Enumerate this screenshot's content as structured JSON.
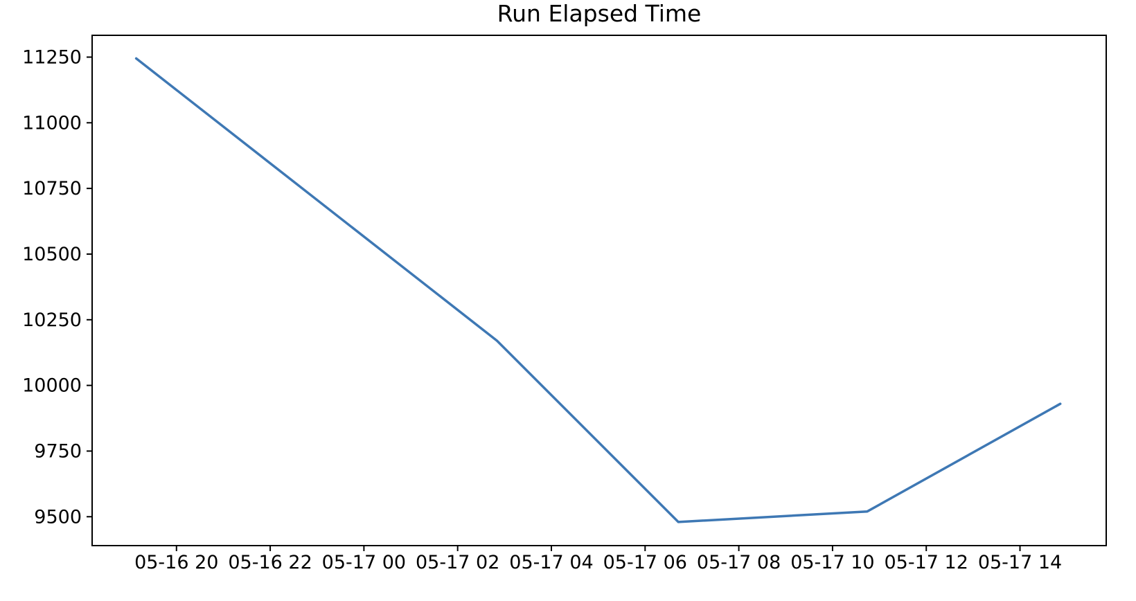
{
  "chart_data": {
    "type": "line",
    "title": "Run Elapsed Time",
    "xlabel": "",
    "ylabel": "",
    "grid": false,
    "legend": "none",
    "background_color": "#ffffff",
    "axis_color": "#000000",
    "line_color": "#3e78b4",
    "line_width": 3.5,
    "xlim_hours": [
      18.2,
      39.84
    ],
    "ylim": [
      9390,
      11333
    ],
    "x_tick_hours": [
      20,
      22,
      24,
      26,
      28,
      30,
      32,
      34,
      36,
      38
    ],
    "x_tick_labels": [
      "05-16 20",
      "05-16 22",
      "05-17 00",
      "05-17 02",
      "05-17 04",
      "05-17 06",
      "05-17 08",
      "05-17 10",
      "05-17 12",
      "05-17 14"
    ],
    "y_tick_values": [
      11250,
      11000,
      10750,
      10500,
      10250,
      10000,
      9750,
      9500
    ],
    "y_tick_labels": [
      "11250",
      "11000",
      "10750",
      "10500",
      "10250",
      "10000",
      "9750",
      "9500"
    ],
    "series": [
      {
        "name": "Run Elapsed Time",
        "color": "#3e78b4",
        "points": [
          {
            "time": "05-16 19:08",
            "hours": 19.14,
            "value": 11245
          },
          {
            "time": "05-17 02:50",
            "hours": 26.84,
            "value": 10170
          },
          {
            "time": "05-17 06:43",
            "hours": 30.71,
            "value": 9480
          },
          {
            "time": "05-17 10:44",
            "hours": 34.74,
            "value": 9520
          },
          {
            "time": "05-17 14:52",
            "hours": 38.86,
            "value": 9930
          }
        ]
      }
    ]
  }
}
